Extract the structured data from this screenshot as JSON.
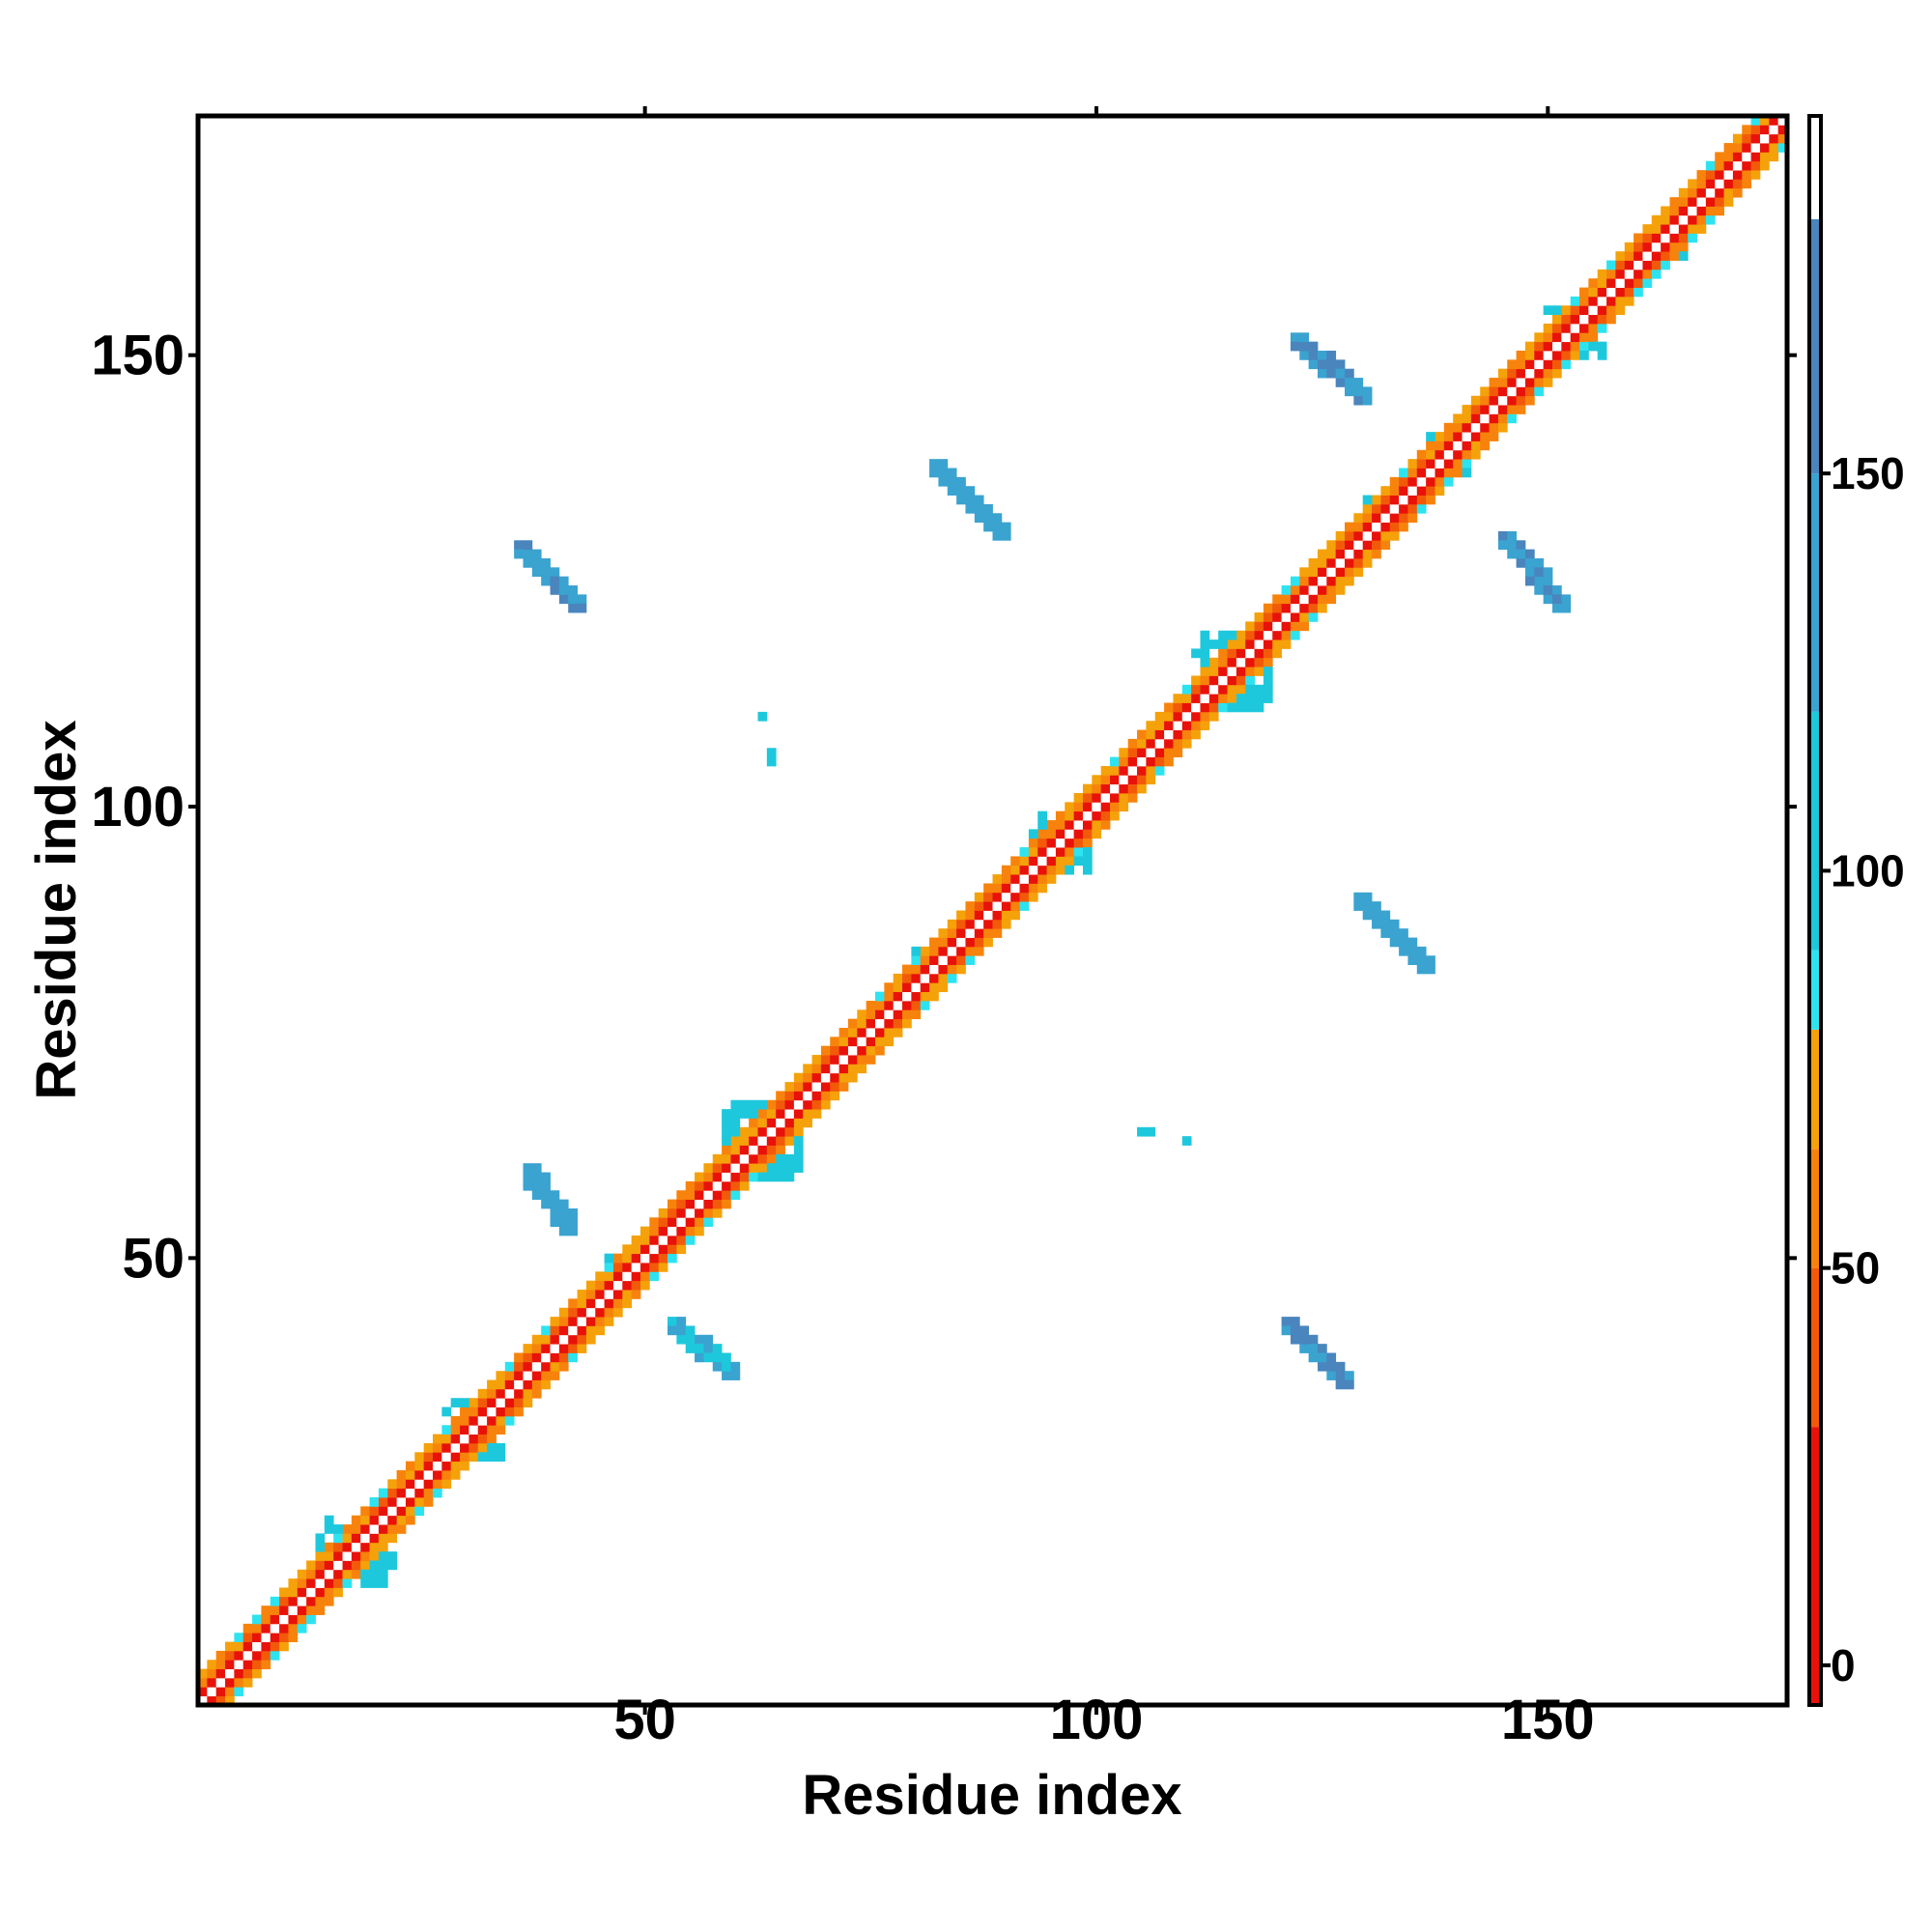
{
  "chart_data": {
    "type": "heatmap",
    "title": "",
    "xlabel": "Residue index",
    "ylabel": "Residue index",
    "xlim": [
      1,
      176
    ],
    "ylim": [
      1,
      176
    ],
    "x_ticks": [
      50,
      100,
      150
    ],
    "y_ticks": [
      50,
      100,
      150
    ],
    "colorbar": {
      "ticks": [
        0,
        50,
        100,
        150
      ],
      "range": [
        -5,
        195
      ],
      "bands": [
        {
          "from": -5,
          "to": 30,
          "color": "#e8120a"
        },
        {
          "from": 30,
          "to": 50,
          "color": "#f25a0a"
        },
        {
          "from": 50,
          "to": 65,
          "color": "#f7830c"
        },
        {
          "from": 65,
          "to": 80,
          "color": "#f5a10a"
        },
        {
          "from": 80,
          "to": 90,
          "color": "#2ee3f0"
        },
        {
          "from": 90,
          "to": 120,
          "color": "#1ec8dc"
        },
        {
          "from": 120,
          "to": 150,
          "color": "#3aa3d0"
        },
        {
          "from": 150,
          "to": 182,
          "color": "#4a85bd"
        },
        {
          "from": 182,
          "to": 195,
          "color": "#ffffff"
        }
      ]
    },
    "diagonal": {
      "from": 1,
      "to": 176,
      "half_width": 3
    },
    "diagonal_blobs": [
      {
        "center": 18,
        "radius": 4,
        "value": 95
      },
      {
        "center": 31,
        "radius": 3,
        "value": 95
      },
      {
        "center": 48,
        "radius": 2,
        "value": 95
      },
      {
        "center": 63,
        "radius": 4,
        "value": 95
      },
      {
        "center": 82,
        "radius": 2,
        "value": 95
      },
      {
        "center": 96,
        "radius": 3,
        "value": 95
      },
      {
        "center": 115,
        "radius": 4,
        "value": 95
      },
      {
        "center": 132,
        "radius": 2,
        "value": 95
      },
      {
        "center": 139,
        "radius": 2,
        "value": 95
      },
      {
        "center": 153,
        "radius": 3,
        "value": 95
      },
      {
        "center": 163,
        "radius": 2,
        "value": 95
      }
    ],
    "off_diagonal_segments": [
      {
        "x1": 36,
        "y1": 129,
        "x2": 43,
        "y2": 122,
        "value": 145
      },
      {
        "x1": 82,
        "y1": 138,
        "x2": 90,
        "y2": 130,
        "value": 140
      },
      {
        "x1": 122,
        "y1": 152,
        "x2": 130,
        "y2": 145,
        "value": 150
      },
      {
        "x1": 145,
        "y1": 130,
        "x2": 152,
        "y2": 122,
        "value": 148
      },
      {
        "x1": 129,
        "y1": 90,
        "x2": 137,
        "y2": 82,
        "value": 140
      },
      {
        "x1": 121,
        "y1": 43,
        "x2": 128,
        "y2": 36,
        "value": 155
      },
      {
        "x1": 53,
        "y1": 43,
        "x2": 60,
        "y2": 37,
        "value": 120
      },
      {
        "x1": 37,
        "y1": 60,
        "x2": 42,
        "y2": 53,
        "value": 135
      }
    ],
    "off_diagonal_dots": [
      {
        "x": 64,
        "y": 106,
        "value": 100
      },
      {
        "x": 64,
        "y": 105,
        "value": 100
      },
      {
        "x": 63,
        "y": 110,
        "value": 100
      },
      {
        "x": 106,
        "y": 64,
        "value": 100
      },
      {
        "x": 105,
        "y": 64,
        "value": 100
      },
      {
        "x": 110,
        "y": 63,
        "value": 100
      }
    ]
  }
}
